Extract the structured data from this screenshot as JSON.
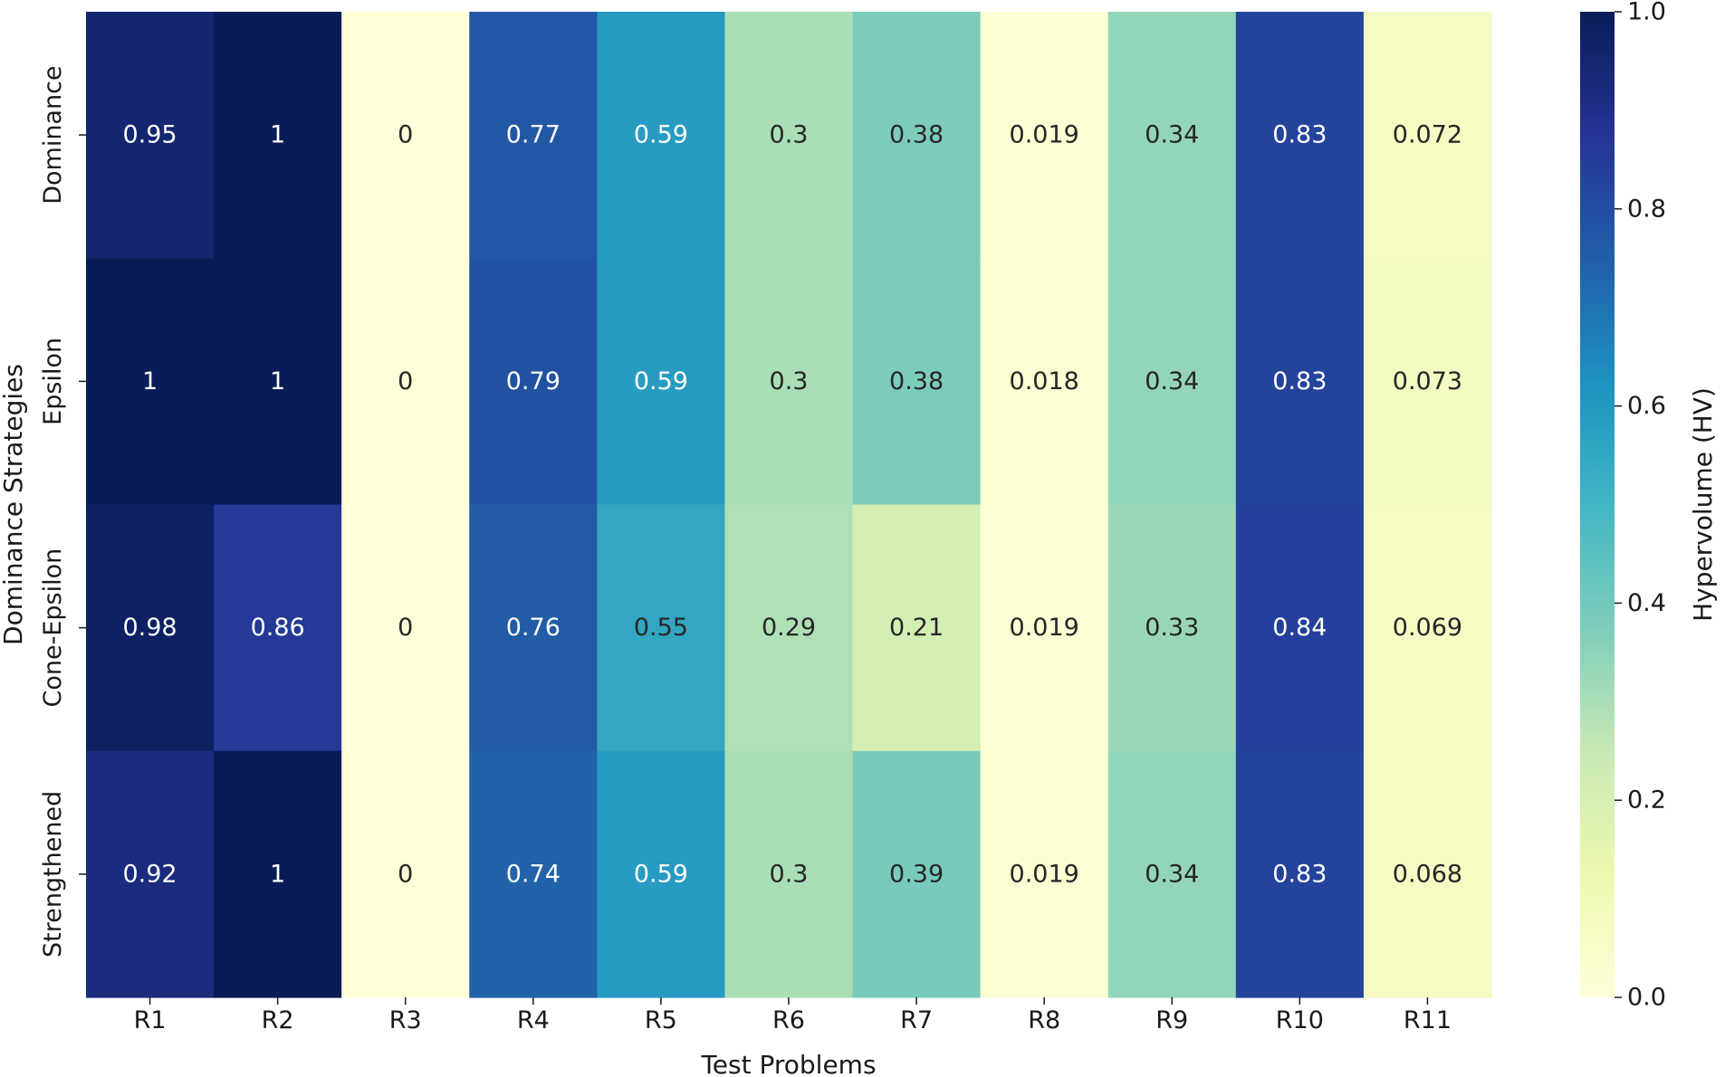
{
  "chart_data": {
    "type": "heatmap",
    "xlabel": "Test Problems",
    "ylabel": "Dominance Strategies",
    "x_categories": [
      "R1",
      "R2",
      "R3",
      "R4",
      "R5",
      "R6",
      "R7",
      "R8",
      "R9",
      "R10",
      "R11"
    ],
    "y_categories": [
      "Dominance",
      "Epsilon",
      "Cone-Epsilon",
      "Strengthened"
    ],
    "values": [
      [
        0.95,
        1,
        0,
        0.77,
        0.59,
        0.3,
        0.38,
        0.019,
        0.34,
        0.83,
        0.072
      ],
      [
        1,
        1,
        0,
        0.79,
        0.59,
        0.3,
        0.38,
        0.018,
        0.34,
        0.83,
        0.073
      ],
      [
        0.98,
        0.86,
        0,
        0.76,
        0.55,
        0.29,
        0.21,
        0.019,
        0.33,
        0.84,
        0.069
      ],
      [
        0.92,
        1,
        0,
        0.74,
        0.59,
        0.3,
        0.39,
        0.019,
        0.34,
        0.83,
        0.068
      ]
    ],
    "labels": [
      [
        "0.95",
        "1",
        "0",
        "0.77",
        "0.59",
        "0.3",
        "0.38",
        "0.019",
        "0.34",
        "0.83",
        "0.072"
      ],
      [
        "1",
        "1",
        "0",
        "0.79",
        "0.59",
        "0.3",
        "0.38",
        "0.018",
        "0.34",
        "0.83",
        "0.073"
      ],
      [
        "0.98",
        "0.86",
        "0",
        "0.76",
        "0.55",
        "0.29",
        "0.21",
        "0.019",
        "0.33",
        "0.84",
        "0.069"
      ],
      [
        "0.92",
        "1",
        "0",
        "0.74",
        "0.59",
        "0.3",
        "0.39",
        "0.019",
        "0.34",
        "0.83",
        "0.068"
      ]
    ],
    "colormap": "YlGnBu",
    "colorbar": {
      "label": "Hypervolume (HV)",
      "range": [
        0.0,
        1.0
      ],
      "ticks": [
        0.0,
        0.2,
        0.4,
        0.6,
        0.8,
        1.0
      ],
      "tick_labels": [
        "0.0",
        "0.2",
        "0.4",
        "0.6",
        "0.8",
        "1.0"
      ]
    }
  }
}
